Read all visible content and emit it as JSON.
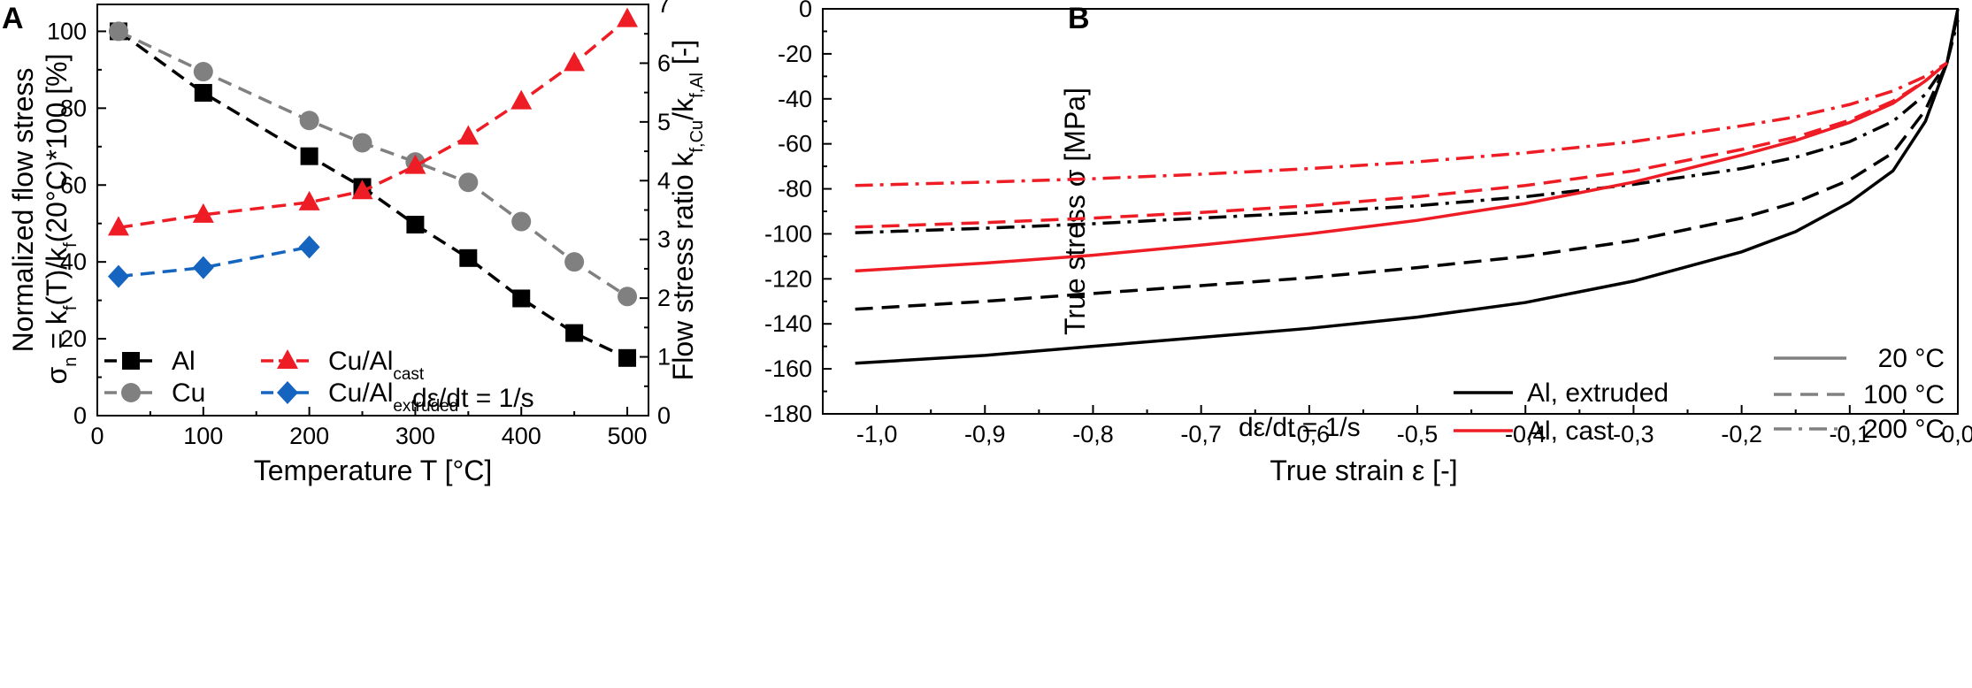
{
  "chart_data": [
    {
      "panel": "A",
      "type": "line",
      "xlabel": "Temperature T [°C]",
      "ylabel_lines": [
        "Normalized flow stress",
        "σ",
        "n",
        " = k",
        "f",
        "(T)/k",
        "f",
        "(20°C)*100 [%]"
      ],
      "y2label_parts": [
        "Flow stress ratio k",
        "f,Cu",
        "/k",
        "f,Al",
        " [-]"
      ],
      "xlim": [
        0,
        520
      ],
      "ylim": [
        0,
        107
      ],
      "y2lim": [
        0,
        7
      ],
      "xticks": [
        0,
        100,
        200,
        300,
        400,
        500
      ],
      "yticks": [
        0,
        20,
        40,
        60,
        80,
        100
      ],
      "y2ticks": [
        0,
        1,
        2,
        3,
        4,
        5,
        6,
        7
      ],
      "series": [
        {
          "name": "Al",
          "axis": "left",
          "color": "#000000",
          "marker": "square",
          "x": [
            20,
            100,
            200,
            250,
            300,
            350,
            400,
            450,
            500
          ],
          "y": [
            100,
            84,
            67.5,
            59.5,
            49.7,
            41,
            30.5,
            21.5,
            15
          ]
        },
        {
          "name": "Cu",
          "axis": "left",
          "color": "#808080",
          "marker": "circle",
          "x": [
            20,
            100,
            200,
            250,
            300,
            350,
            400,
            450,
            500
          ],
          "y": [
            100,
            89.5,
            76.8,
            71,
            66,
            60.7,
            50.5,
            40,
            31
          ]
        },
        {
          "name": "Cu/Al cast",
          "axis": "right",
          "color": "#ee1c24",
          "marker": "triangle",
          "x": [
            20,
            100,
            200,
            250,
            300,
            350,
            400,
            450,
            500
          ],
          "y": [
            3.2,
            3.42,
            3.63,
            3.82,
            4.25,
            4.75,
            5.35,
            6.0,
            6.75
          ]
        },
        {
          "name": "Cu/Al extruded",
          "axis": "right",
          "color": "#1565c0",
          "marker": "diamond",
          "x": [
            20,
            100,
            200
          ],
          "y": [
            2.37,
            2.52,
            2.87
          ]
        }
      ],
      "legend": [
        {
          "label": "Al",
          "sub": ""
        },
        {
          "label": "Cu/Al",
          "sub": "cast"
        },
        {
          "label": "Cu",
          "sub": ""
        },
        {
          "label": "Cu/Al",
          "sub": "extruded"
        }
      ],
      "annotation": "dε/dt = 1/s"
    },
    {
      "panel": "B",
      "type": "line",
      "xlabel": "True strain ε [-]",
      "ylabel": "True stress σ [MPa]",
      "xlim": [
        -1.05,
        0.0
      ],
      "ylim": [
        -180,
        0
      ],
      "xticks": [
        -1.0,
        -0.9,
        -0.8,
        -0.7,
        -0.6,
        -0.5,
        -0.4,
        -0.3,
        -0.2,
        -0.1,
        0.0
      ],
      "xtick_labels": [
        "-1,0",
        "-0,9",
        "-0,8",
        "-0,7",
        "-0,6",
        "-0,5",
        "-0,4",
        "-0,3",
        "-0,2",
        "-0,1",
        "0,0"
      ],
      "yticks": [
        0,
        -20,
        -40,
        -60,
        -80,
        -100,
        -120,
        -140,
        -160,
        -180
      ],
      "series": [
        {
          "name": "Al, extruded 20 °C",
          "material": "extruded",
          "temp": 20,
          "color": "#000000",
          "dash": "solid",
          "x": [
            -1.02,
            -0.9,
            -0.8,
            -0.7,
            -0.6,
            -0.5,
            -0.4,
            -0.3,
            -0.2,
            -0.15,
            -0.1,
            -0.06,
            -0.03,
            -0.01,
            0.0
          ],
          "y": [
            -157.5,
            -154,
            -150,
            -146,
            -142,
            -137,
            -130.5,
            -121,
            -108,
            -99,
            -86,
            -72,
            -50,
            -24,
            0
          ]
        },
        {
          "name": "Al, extruded 100 °C",
          "material": "extruded",
          "temp": 100,
          "color": "#000000",
          "dash": "dashed",
          "x": [
            -1.02,
            -0.9,
            -0.8,
            -0.7,
            -0.6,
            -0.5,
            -0.4,
            -0.3,
            -0.2,
            -0.15,
            -0.1,
            -0.06,
            -0.03,
            -0.01,
            0.0
          ],
          "y": [
            -133.5,
            -130,
            -126.5,
            -123,
            -119.5,
            -115,
            -110,
            -103,
            -93,
            -86,
            -76,
            -64,
            -45,
            -24,
            -2
          ]
        },
        {
          "name": "Al, extruded 200 °C",
          "material": "extruded",
          "temp": 200,
          "color": "#000000",
          "dash": "dashdot",
          "x": [
            -1.02,
            -0.9,
            -0.8,
            -0.7,
            -0.6,
            -0.5,
            -0.4,
            -0.3,
            -0.2,
            -0.15,
            -0.1,
            -0.06,
            -0.03,
            -0.01,
            0.0
          ],
          "y": [
            -99.5,
            -97.5,
            -95.5,
            -93,
            -90.5,
            -87.5,
            -83.5,
            -78,
            -71,
            -66,
            -59,
            -50,
            -38,
            -24,
            -5
          ]
        },
        {
          "name": "Al, cast 20 °C",
          "material": "cast",
          "temp": 20,
          "color": "#ee1c24",
          "dash": "solid",
          "x": [
            -1.02,
            -0.9,
            -0.8,
            -0.7,
            -0.6,
            -0.5,
            -0.4,
            -0.3,
            -0.2,
            -0.15,
            -0.1,
            -0.06,
            -0.03,
            -0.01
          ],
          "y": [
            -116.5,
            -113,
            -109.5,
            -105,
            -100,
            -94,
            -86.5,
            -77,
            -65,
            -58.5,
            -50.5,
            -42,
            -32,
            -24
          ]
        },
        {
          "name": "Al, cast 100 °C",
          "material": "cast",
          "temp": 100,
          "color": "#ee1c24",
          "dash": "dashed",
          "x": [
            -1.02,
            -0.9,
            -0.8,
            -0.7,
            -0.6,
            -0.5,
            -0.4,
            -0.3,
            -0.2,
            -0.15,
            -0.1,
            -0.06,
            -0.03,
            -0.01
          ],
          "y": [
            -97,
            -95,
            -93,
            -90.5,
            -87.5,
            -83.5,
            -78.5,
            -72,
            -62.5,
            -57,
            -49.5,
            -41,
            -32,
            -24
          ]
        },
        {
          "name": "Al, cast 200 °C",
          "material": "cast",
          "temp": 200,
          "color": "#ee1c24",
          "dash": "dashdot",
          "x": [
            -1.02,
            -0.9,
            -0.8,
            -0.7,
            -0.6,
            -0.5,
            -0.4,
            -0.3,
            -0.2,
            -0.15,
            -0.1,
            -0.06,
            -0.03,
            -0.01
          ],
          "y": [
            -78.5,
            -77,
            -75.5,
            -73.5,
            -71,
            -68,
            -64,
            -59,
            -52,
            -48,
            -42.5,
            -36.5,
            -30,
            -24
          ]
        }
      ],
      "legend_material": [
        {
          "label": "Al, extruded",
          "color": "#000000"
        },
        {
          "label": "Al, cast",
          "color": "#ee1c24"
        }
      ],
      "legend_temperature": [
        {
          "label": "20 °C",
          "dash": "solid"
        },
        {
          "label": "100 °C",
          "dash": "dashed"
        },
        {
          "label": "200 °C",
          "dash": "dashdot"
        }
      ],
      "legend_temp_color": "#808080",
      "annotation": "dε/dt = 1/s"
    }
  ]
}
